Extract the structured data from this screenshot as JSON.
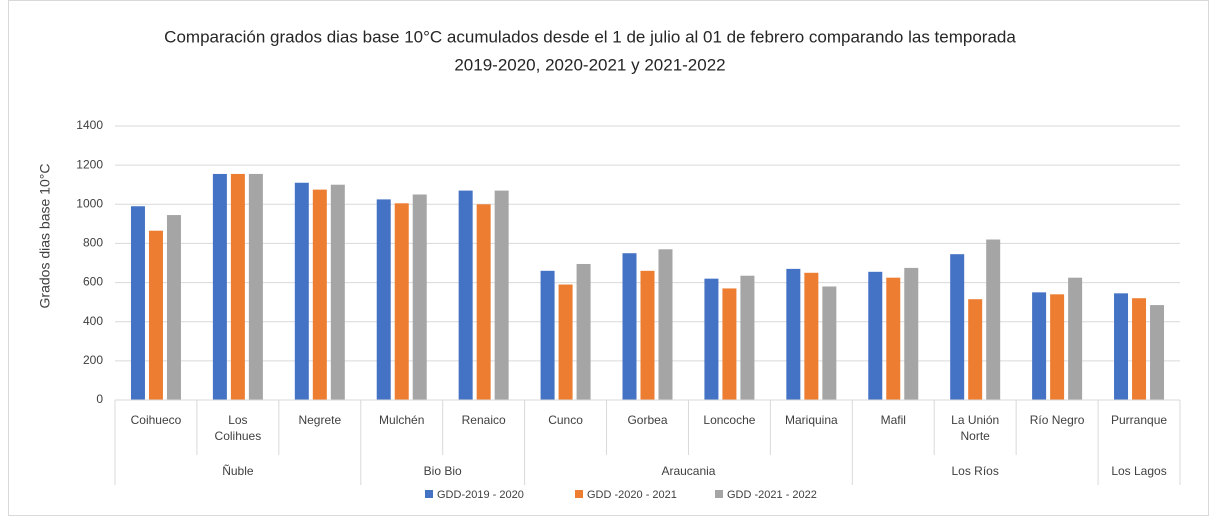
{
  "chart_data": {
    "type": "bar",
    "title": [
      "Comparación grados dias base 10°C acumulados desde el 1 de julio al 01 de febrero comparando las temporada",
      "2019-2020, 2020-2021 y 2021-2022"
    ],
    "y_label": "Grados  dias base 10°C",
    "groups": [
      {
        "name": "Ñuble",
        "categories": [
          "Coihueco",
          "Los Colihues",
          "Negrete"
        ]
      },
      {
        "name": "Bio Bio",
        "categories": [
          "Mulchén",
          "Renaico"
        ]
      },
      {
        "name": "Araucania",
        "categories": [
          "Cunco",
          "Gorbea",
          "Loncoche",
          "Mariquina"
        ]
      },
      {
        "name": "Los Ríos",
        "categories": [
          "Mafil",
          "La Unión Norte",
          "Río Negro"
        ]
      },
      {
        "name": "Los Lagos",
        "categories": [
          "Purranque"
        ]
      }
    ],
    "series": [
      {
        "name": "GDD-2019 - 2020",
        "color": "#4472c4",
        "values": [
          990,
          1155,
          1110,
          1025,
          1070,
          660,
          750,
          620,
          670,
          655,
          745,
          550,
          545
        ]
      },
      {
        "name": "GDD -2020 - 2021",
        "color": "#ed7d31",
        "values": [
          865,
          1155,
          1075,
          1005,
          1000,
          590,
          660,
          570,
          650,
          625,
          515,
          540,
          520
        ]
      },
      {
        "name": "GDD -2021 - 2022",
        "color": "#a5a5a5",
        "values": [
          945,
          1155,
          1100,
          1050,
          1070,
          695,
          770,
          635,
          580,
          675,
          820,
          625,
          485
        ]
      }
    ],
    "ylim": [
      0,
      1400
    ],
    "yticks": [
      0,
      200,
      400,
      600,
      800,
      1000,
      1200,
      1400
    ],
    "grid": true,
    "legend": "bottom"
  }
}
